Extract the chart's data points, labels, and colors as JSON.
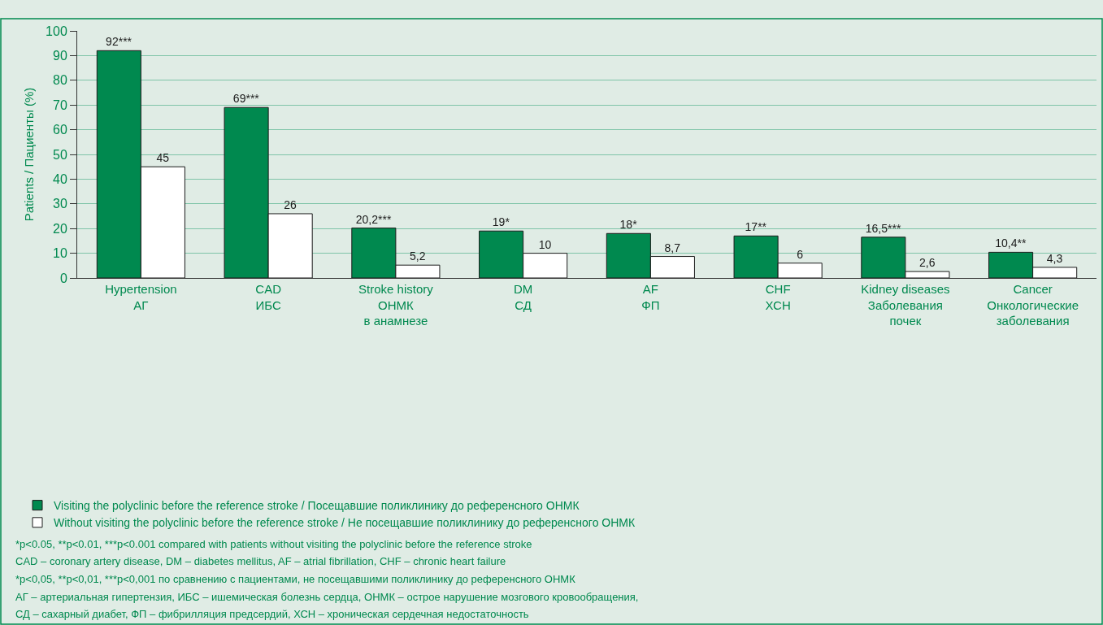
{
  "chart_data": {
    "type": "bar",
    "ylabel": "Patients / Пациенты (%)",
    "categories": [
      "Hypertension\nАГ",
      "CAD\nИБС",
      "Stroke history\nОНМК\nв анамнезе",
      "DM\nСД",
      "AF\nФП",
      "CHF\nХСН",
      "Kidney diseases\nЗаболевания\nпочек",
      "Cancer\nОнкологические\nзаболевания"
    ],
    "series": [
      {
        "name": "Visiting the polyclinic before the reference stroke / Посещавшие поликлинику до референсного ОНМК",
        "color": "#00894f",
        "values": [
          92,
          69,
          20.2,
          19,
          18,
          17,
          16.5,
          10.4
        ],
        "value_labels": [
          "92***",
          "69***",
          "20,2***",
          "19*",
          "18*",
          "17**",
          "16,5***",
          "10,4**"
        ]
      },
      {
        "name": "Without visiting the polyclinic before the reference stroke / Не посещавшие поликлинику до референсного ОНМК",
        "color": "#ffffff",
        "values": [
          45,
          26,
          5.2,
          10,
          8.7,
          6,
          2.6,
          4.3
        ],
        "value_labels": [
          "45",
          "26",
          "5,2",
          "10",
          "8,7",
          "6",
          "2,6",
          "4,3"
        ]
      }
    ],
    "ylim": [
      0,
      100
    ],
    "yticks": [
      0,
      10,
      20,
      30,
      40,
      50,
      60,
      70,
      80,
      90,
      100
    ],
    "grid": "y",
    "legend": "bottom left",
    "annotations": [
      "*p<0.05, **p<0.01, ***p<0.001 compared with patients without visiting the polyclinic before the reference stroke",
      "CAD – coronary artery disease, DM – diabetes mellitus, AF – atrial fibrillation, CHF – chronic heart failure",
      "*p<0,05, **p<0,01, ***p<0,001 по сравнению с пациентами, не посещавшими поликлинику до референсного ОНМК",
      "АГ – артериальная гипертензия, ИБС – ишемическая болезнь сердца, ОНМК – острое нарушение мозгового кровообращения,",
      "СД – сахарный диабет, ФП – фибрилляция предсердий, ХСН – хроническая сердечная недостаточность"
    ]
  }
}
